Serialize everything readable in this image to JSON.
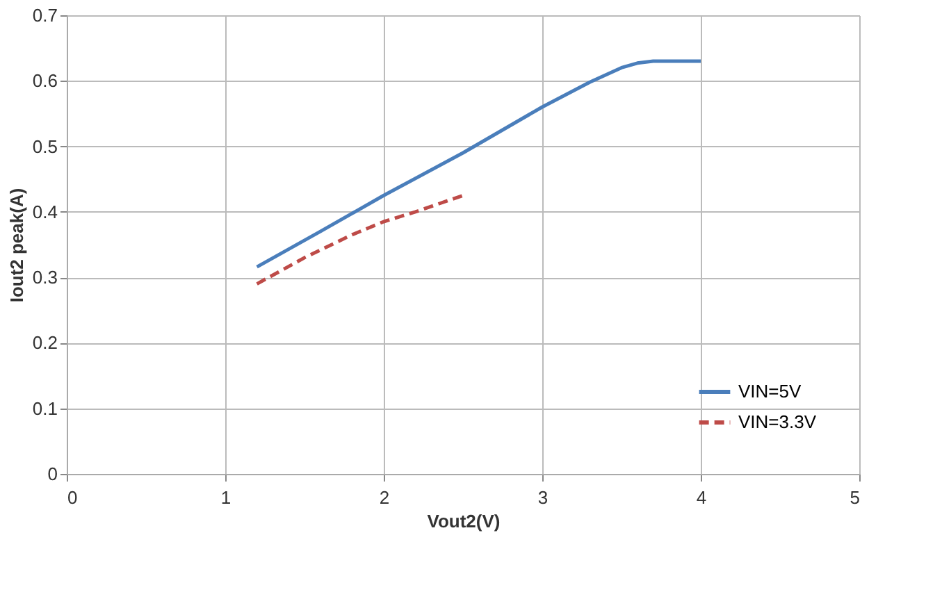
{
  "chart_data": {
    "type": "line",
    "xlabel": "Vout2(V)",
    "ylabel": "Iout2 peak(A)",
    "xlim": [
      0,
      5
    ],
    "xticks": [
      0,
      1,
      2,
      3,
      4,
      5
    ],
    "ylim": [
      0,
      0.7
    ],
    "yticks": [
      0,
      0.1,
      0.2,
      0.3,
      0.4,
      0.5,
      0.6,
      0.7
    ],
    "grid": true,
    "legend": "bottom right",
    "marker": "none",
    "series": [
      {
        "name": "VIN=5V",
        "color": "#4a7ebb",
        "line_style": "solid",
        "x": [
          1.2,
          1.6,
          2.0,
          2.5,
          3.0,
          3.3,
          3.5,
          3.6,
          3.7,
          4.0
        ],
        "values": [
          0.316,
          0.37,
          0.425,
          0.49,
          0.56,
          0.598,
          0.62,
          0.627,
          0.63,
          0.63
        ]
      },
      {
        "name": "VIN=3.3V",
        "color": "#be4b48",
        "line_style": "dashed",
        "x": [
          1.2,
          1.5,
          1.8,
          2.0,
          2.2,
          2.5
        ],
        "values": [
          0.29,
          0.33,
          0.365,
          0.385,
          0.4,
          0.425
        ]
      }
    ]
  }
}
